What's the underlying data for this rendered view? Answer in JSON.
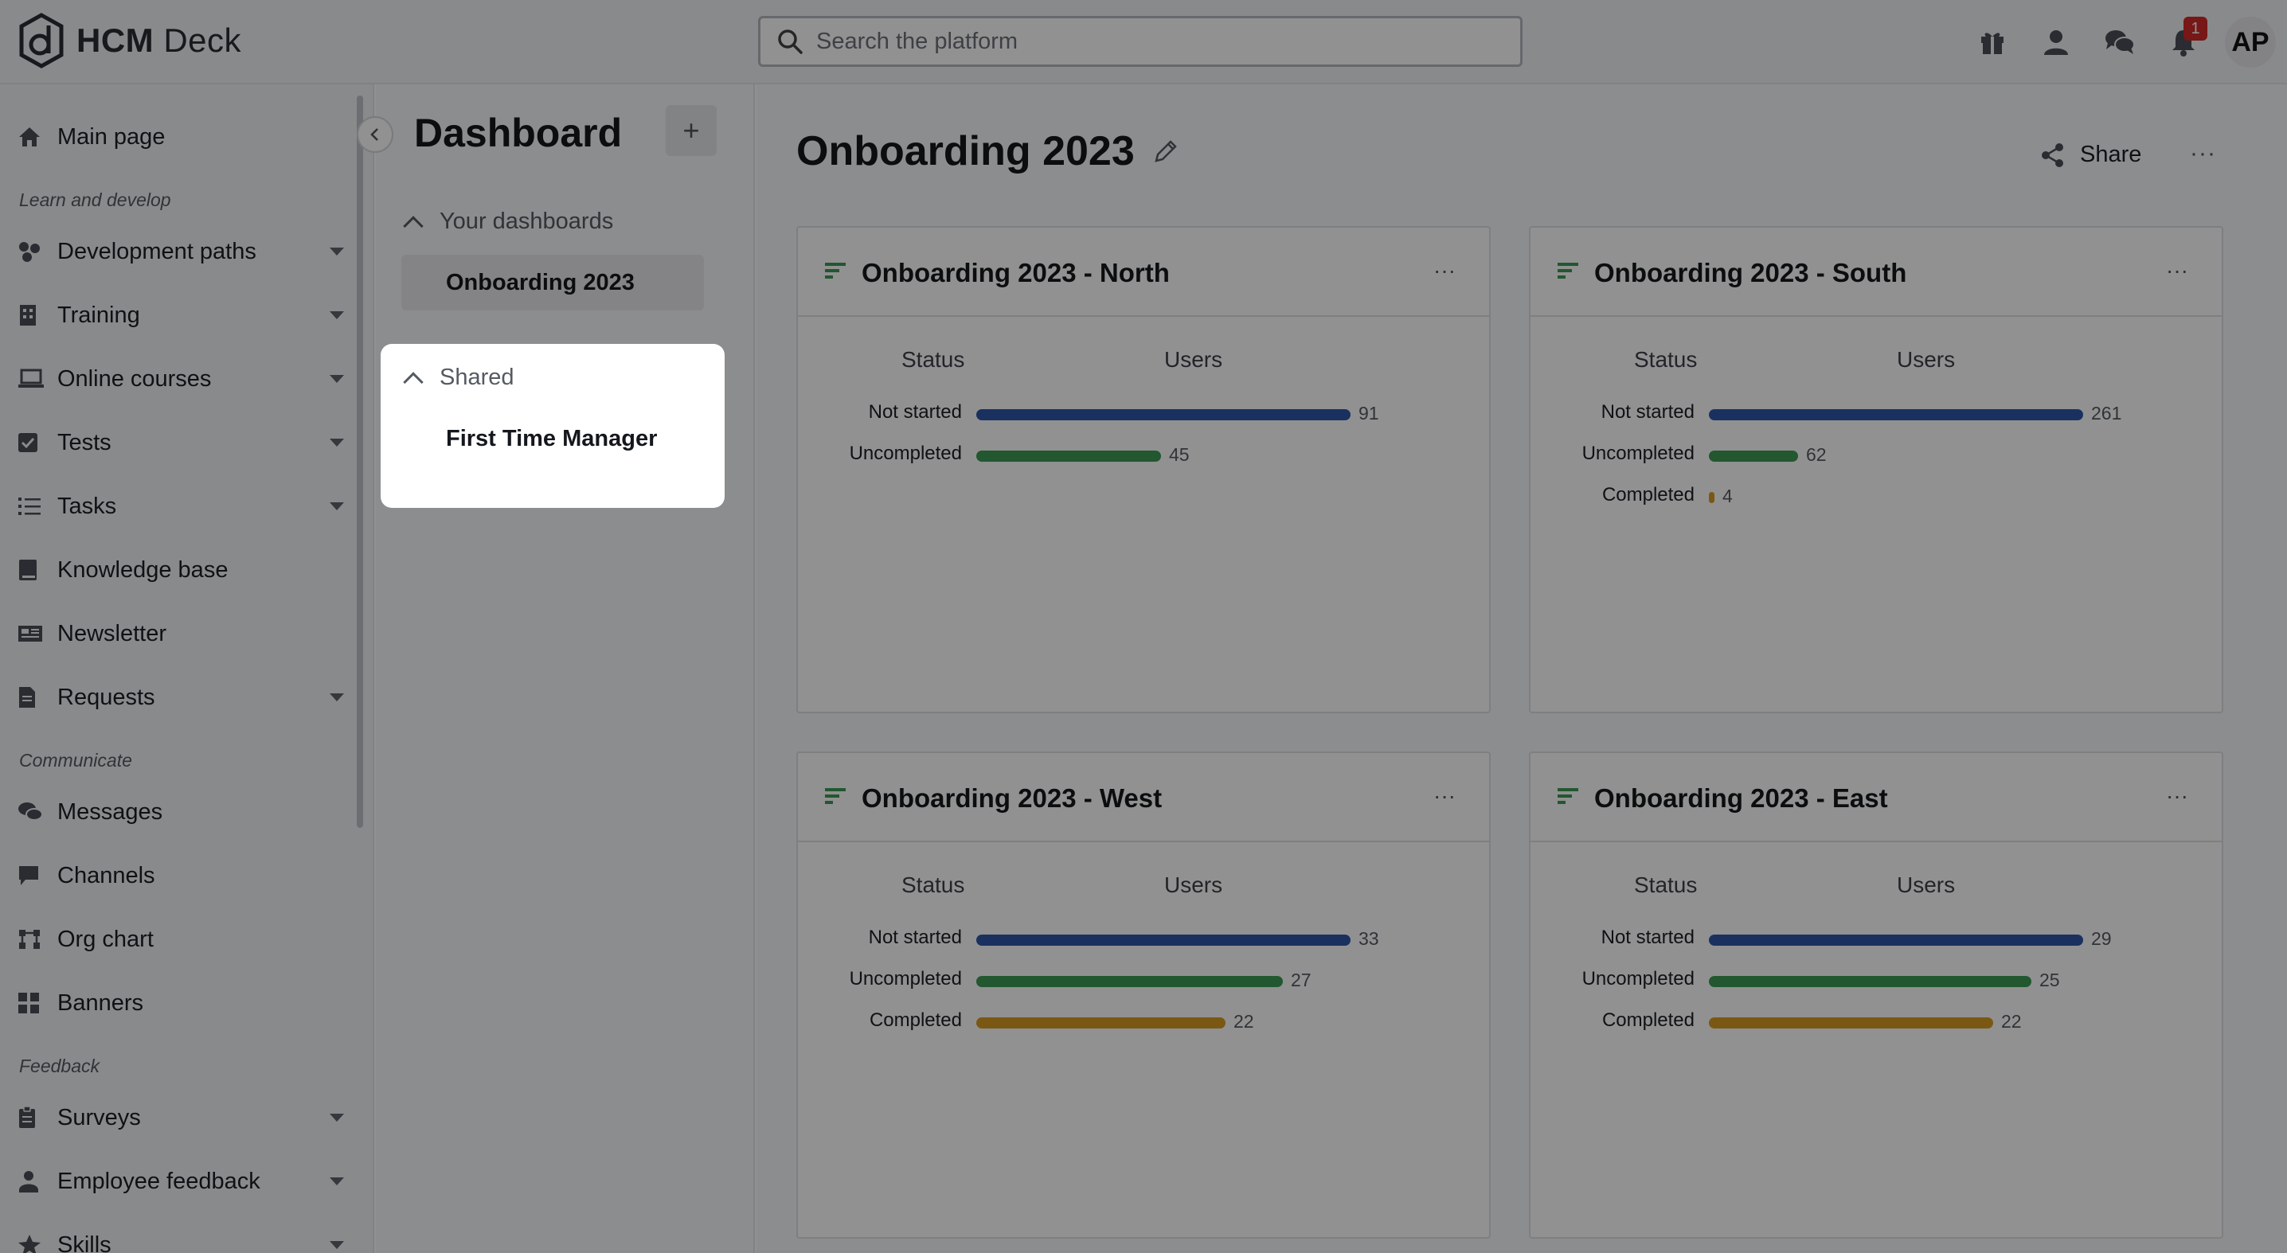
{
  "app": {
    "logo_text_bold": "HCM",
    "logo_text": " Deck"
  },
  "search": {
    "placeholder": "Search the platform"
  },
  "topbar": {
    "icons": [
      "gift-icon",
      "user-icon",
      "chat-icon",
      "bell-icon"
    ],
    "notification_count": "1",
    "avatar_initials": "AP"
  },
  "sidebar": {
    "main_page": "Main page",
    "sections": {
      "learn": "Learn and develop",
      "communicate": "Communicate",
      "feedback": "Feedback"
    },
    "items": {
      "development_paths": "Development paths",
      "training": "Training",
      "online_courses": "Online courses",
      "tests": "Tests",
      "tasks": "Tasks",
      "knowledge_base": "Knowledge base",
      "newsletter": "Newsletter",
      "requests": "Requests",
      "messages": "Messages",
      "channels": "Channels",
      "org_chart": "Org chart",
      "banners": "Banners",
      "surveys": "Surveys",
      "employee_feedback": "Employee feedback",
      "skills": "Skills"
    }
  },
  "dashboards": {
    "title": "Dashboard",
    "add_label": "+",
    "your_group": "Your dashboards",
    "your_items": [
      "Onboarding 2023"
    ],
    "shared_group": "Shared",
    "shared_items": [
      "First Time Manager"
    ]
  },
  "main": {
    "title": "Onboarding 2023",
    "share_label": "Share",
    "more_label": "···"
  },
  "colors": {
    "not_started": "#2f57a8",
    "uncompleted": "#3d9a55",
    "completed": "#d69b24"
  },
  "chart_data": [
    {
      "type": "bar",
      "title": "Onboarding 2023 - North",
      "xlabel": "Users",
      "ylabel": "Status",
      "categories": [
        "Not started",
        "Uncompleted"
      ],
      "values": [
        91,
        45
      ]
    },
    {
      "type": "bar",
      "title": "Onboarding 2023 - South",
      "xlabel": "Users",
      "ylabel": "Status",
      "categories": [
        "Not started",
        "Uncompleted",
        "Completed"
      ],
      "values": [
        261,
        62,
        4
      ]
    },
    {
      "type": "bar",
      "title": "Onboarding 2023 - West",
      "xlabel": "Users",
      "ylabel": "Status",
      "categories": [
        "Not started",
        "Uncompleted",
        "Completed"
      ],
      "values": [
        33,
        27,
        22
      ]
    },
    {
      "type": "bar",
      "title": "Onboarding 2023 - East",
      "xlabel": "Users",
      "ylabel": "Status",
      "categories": [
        "Not started",
        "Uncompleted",
        "Completed"
      ],
      "values": [
        29,
        25,
        22
      ]
    }
  ]
}
